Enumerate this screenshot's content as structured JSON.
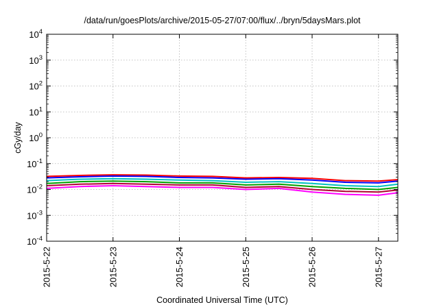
{
  "chart_data": {
    "type": "line",
    "title": "/data/run/goesPlots/archive/2015-05-27/07:00/flux/../bryn/5daysMars.plot",
    "xlabel": "Coordinated Universal Time (UTC)",
    "ylabel": "cGy/day",
    "y_scale": "log",
    "ylim": [
      0.0001,
      10000
    ],
    "y_ticks": [
      {
        "value": 0.0001,
        "base": "10",
        "exp": "-4"
      },
      {
        "value": 0.001,
        "base": "10",
        "exp": "-3"
      },
      {
        "value": 0.01,
        "base": "10",
        "exp": "-2"
      },
      {
        "value": 0.1,
        "base": "10",
        "exp": "-1"
      },
      {
        "value": 1,
        "base": "10",
        "exp": "0"
      },
      {
        "value": 10,
        "base": "10",
        "exp": "1"
      },
      {
        "value": 100,
        "base": "10",
        "exp": "2"
      },
      {
        "value": 1000,
        "base": "10",
        "exp": "3"
      },
      {
        "value": 10000,
        "base": "10",
        "exp": "4"
      }
    ],
    "xlim": [
      "2015-05-22T00:00",
      "2015-05-27T07:00"
    ],
    "x_ticks": [
      "2015-5-22",
      "2015-5-23",
      "2015-5-24",
      "2015-5-25",
      "2015-5-26",
      "2015-5-27"
    ],
    "x_tick_dates": [
      "2015-05-22",
      "2015-05-23",
      "2015-05-24",
      "2015-05-25",
      "2015-05-26",
      "2015-05-27"
    ],
    "grid": true,
    "legend": "none",
    "x": [
      "2015-05-22T00:00",
      "2015-05-22T12:00",
      "2015-05-23T00:00",
      "2015-05-23T12:00",
      "2015-05-24T00:00",
      "2015-05-24T12:00",
      "2015-05-25T00:00",
      "2015-05-25T12:00",
      "2015-05-26T00:00",
      "2015-05-26T12:00",
      "2015-05-27T00:00",
      "2015-05-27T07:00"
    ],
    "series": [
      {
        "color": "#ff0000",
        "values": [
          0.032,
          0.035,
          0.037,
          0.036,
          0.033,
          0.032,
          0.028,
          0.029,
          0.027,
          0.022,
          0.021,
          0.024
        ]
      },
      {
        "color": "#0000ff",
        "values": [
          0.028,
          0.031,
          0.033,
          0.032,
          0.029,
          0.028,
          0.025,
          0.026,
          0.023,
          0.019,
          0.018,
          0.021
        ]
      },
      {
        "color": "#00c0c0",
        "values": [
          0.022,
          0.025,
          0.026,
          0.025,
          0.023,
          0.022,
          0.019,
          0.02,
          0.017,
          0.014,
          0.013,
          0.016
        ]
      },
      {
        "color": "#00a000",
        "values": [
          0.017,
          0.02,
          0.021,
          0.02,
          0.018,
          0.018,
          0.015,
          0.016,
          0.013,
          0.011,
          0.01,
          0.012
        ]
      },
      {
        "color": "#b00030",
        "values": [
          0.014,
          0.016,
          0.017,
          0.016,
          0.015,
          0.015,
          0.012,
          0.013,
          0.01,
          0.0085,
          0.008,
          0.0095
        ]
      },
      {
        "color": "#ff00ff",
        "values": [
          0.011,
          0.013,
          0.014,
          0.013,
          0.012,
          0.012,
          0.01,
          0.011,
          0.008,
          0.0065,
          0.006,
          0.0075
        ]
      }
    ]
  }
}
